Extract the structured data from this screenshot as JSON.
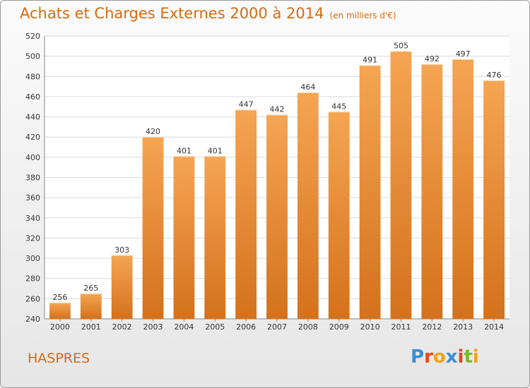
{
  "chart_data": {
    "type": "bar",
    "title": "Achats et Charges Externes 2000 à 2014",
    "subtitle": "(en milliers d'€)",
    "categories": [
      "2000",
      "2001",
      "2002",
      "2003",
      "2004",
      "2005",
      "2006",
      "2007",
      "2008",
      "2009",
      "2010",
      "2011",
      "2012",
      "2013",
      "2014"
    ],
    "values": [
      256,
      265,
      303,
      420,
      401,
      401,
      447,
      442,
      464,
      445,
      491,
      505,
      492,
      497,
      476
    ],
    "ylim": [
      240,
      520
    ],
    "yticks": [
      240,
      260,
      280,
      300,
      320,
      340,
      360,
      380,
      400,
      420,
      440,
      460,
      480,
      500,
      520
    ],
    "grid": true,
    "bar_color": "#ef8c30"
  },
  "footer": {
    "town": "HASPRES",
    "logo_letters": [
      "P",
      "r",
      "o",
      "x",
      "i",
      "t",
      "i"
    ],
    "logo_colors": [
      "#3a8fd0",
      "#e8451e",
      "#f2a21a",
      "#3a8fd0",
      "#e8451e",
      "#7ab828",
      "#f2a21a"
    ]
  }
}
